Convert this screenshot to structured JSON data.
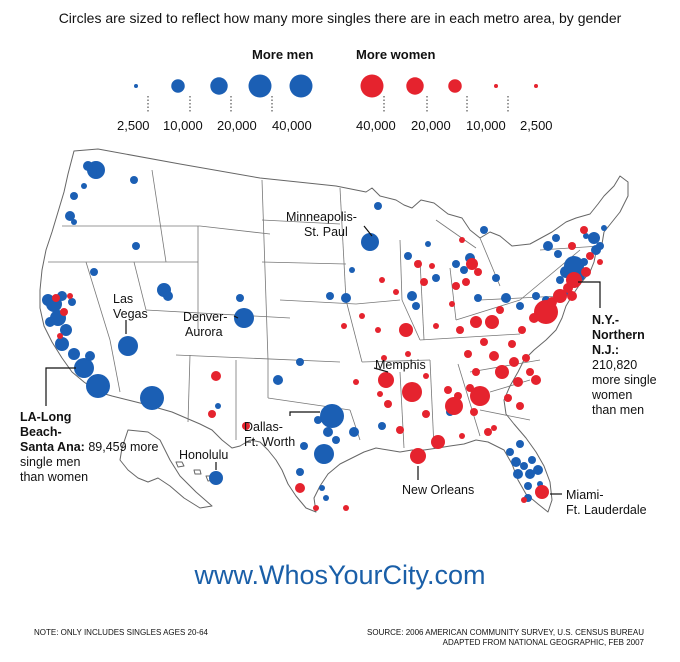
{
  "subtitle": "Circles are sized to reflect how many more singles there are in each metro area, by gender",
  "legend": {
    "men_title": "More men",
    "women_title": "More women",
    "men": [
      {
        "label": "2,500",
        "value": 2500
      },
      {
        "label": "10,000",
        "value": 10000
      },
      {
        "label": "20,000",
        "value": 20000
      },
      {
        "label": "40,000",
        "value": 40000
      }
    ],
    "women": [
      {
        "label": "40,000",
        "value": 40000
      },
      {
        "label": "20,000",
        "value": 20000
      },
      {
        "label": "10,000",
        "value": 10000
      },
      {
        "label": "2,500",
        "value": 2500
      }
    ]
  },
  "colors": {
    "men": "#1b5fb4",
    "women": "#e5232e",
    "land": "#ffffff",
    "border": "#666666",
    "url": "#1a5fa8"
  },
  "callouts": {
    "la": {
      "name_line1": "LA-Long",
      "name_line2": "Beach-",
      "name_line3": "Santa Ana:",
      "detail_line1": "89,459 more",
      "detail_line2": "single men",
      "detail_line3": "than women"
    },
    "ny": {
      "name_line1": "N.Y.-",
      "name_line2": "Northern",
      "name_line3": "N.J.:",
      "detail_line1": "210,820",
      "detail_line2": "more single",
      "detail_line3": "women",
      "detail_line4": "than men"
    }
  },
  "cities": {
    "minneapolis_1": "Minneapolis-",
    "minneapolis_2": "St. Paul",
    "las_vegas_1": "Las",
    "las_vegas_2": "Vegas",
    "denver_1": "Denver-",
    "denver_2": "Aurora",
    "memphis": "Memphis",
    "dallas_1": "Dallas-",
    "dallas_2": "Ft. Worth",
    "honolulu": "Honolulu",
    "new_orleans": "New Orleans",
    "miami_1": "Miami-",
    "miami_2": "Ft. Lauderdale"
  },
  "url": "www.WhosYourCity.com",
  "note": "NOTE: ONLY INCLUDES SINGLES AGES 20-64",
  "source_1": "SOURCE: 2006 AMERICAN COMMUNITY SURVEY, U.S. CENSUS BUREAU",
  "source_2": "ADAPTED FROM NATIONAL GEOGRAPHIC, FEB 2007"
}
